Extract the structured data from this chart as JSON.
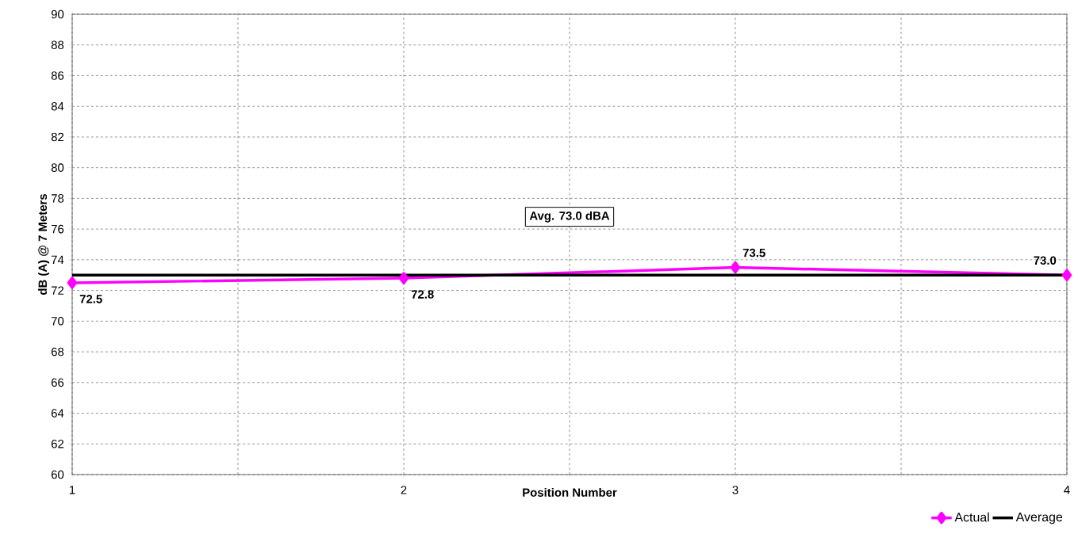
{
  "chart_data": {
    "type": "line",
    "xlabel": "Position Number",
    "ylabel": "dB (A) @ 7 Meters",
    "x": [
      1,
      2,
      3,
      4
    ],
    "series": [
      {
        "name": "Actual",
        "color": "#ff00ff",
        "values": [
          72.5,
          72.8,
          73.5,
          73.0
        ],
        "marker": "diamond",
        "value_labels": [
          "72.5",
          "72.8",
          "73.5",
          "73.0"
        ]
      },
      {
        "name": "Average",
        "color": "#000000",
        "values": [
          73.0,
          73.0,
          73.0,
          73.0
        ],
        "marker": "none"
      }
    ],
    "xlim": [
      1,
      4
    ],
    "xticks": [
      1,
      {
        "value": 1.5,
        "label": null
      },
      2,
      {
        "value": 2.5,
        "label": null
      },
      3,
      {
        "value": 3.5,
        "label": null
      },
      4
    ],
    "ylim": [
      60,
      90
    ],
    "yticks": [
      60,
      62,
      64,
      66,
      68,
      70,
      72,
      74,
      76,
      78,
      80,
      82,
      84,
      86,
      88,
      90
    ],
    "grid": true,
    "line_style": "solid",
    "legend": "bottom right",
    "annotations": [
      "Avg. 73.0 dBA"
    ]
  }
}
